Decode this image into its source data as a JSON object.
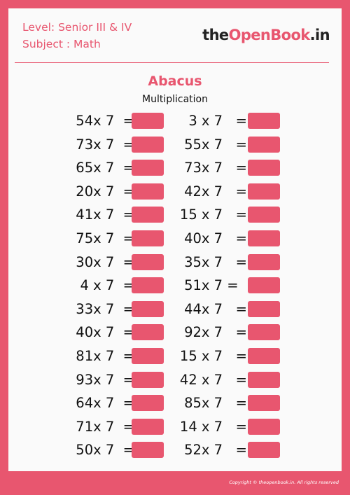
{
  "header": {
    "level": "Level: Senior III & IV",
    "subject": "Subject : Math",
    "logo_part1": "the",
    "logo_part2": "OpenBook",
    "logo_part3": ".in"
  },
  "title": "Abacus",
  "subtitle": "Multiplication",
  "rows": [
    {
      "left": "54x 7  =",
      "right": "3 x 7   ="
    },
    {
      "left": "73x 7  =",
      "right": "55x 7   ="
    },
    {
      "left": "65x 7  =",
      "right": "73x 7   ="
    },
    {
      "left": "20x 7  =",
      "right": "42x 7   ="
    },
    {
      "left": "41x 7  =",
      "right": "15 x 7   ="
    },
    {
      "left": "75x 7  =",
      "right": "40x 7   ="
    },
    {
      "left": "30x 7  =",
      "right": "35x 7   ="
    },
    {
      "left": "4 x 7  =",
      "right": "51x 7 =  "
    },
    {
      "left": "33x 7  =",
      "right": "44x 7   ="
    },
    {
      "left": "40x 7  =",
      "right": "92x 7   ="
    },
    {
      "left": "81x 7  =",
      "right": "15 x 7   ="
    },
    {
      "left": "93x 7  =",
      "right": "42 x 7   ="
    },
    {
      "left": "64x 7  =",
      "right": "85x 7   ="
    },
    {
      "left": "71x 7  =",
      "right": "14 x 7   ="
    },
    {
      "left": "50x 7  =",
      "right": "52x 7   ="
    }
  ],
  "footer": "Copyright © theopenbook.in. All rights reserved",
  "colors": {
    "accent": "#e8566f",
    "background": "#fafafa",
    "text": "#111111"
  }
}
